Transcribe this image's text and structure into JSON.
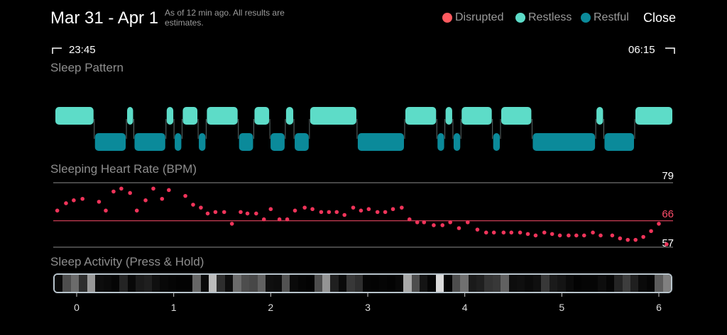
{
  "header": {
    "title": "Mar 31 - Apr 1",
    "note": "As of 12 min ago. All results are estimates.",
    "legend": [
      {
        "label": "Disrupted",
        "color": "#ff5a5f"
      },
      {
        "label": "Restless",
        "color": "#5ddcc8"
      },
      {
        "label": "Restful",
        "color": "#0b8a9a"
      }
    ],
    "close_label": "Close"
  },
  "times": {
    "start": "23:45",
    "end": "06:15"
  },
  "sections": {
    "pattern": "Sleep Pattern",
    "heart": "Sleeping Heart Rate (BPM)",
    "activity": "Sleep Activity (Press & Hold)"
  },
  "sleep_pattern": [
    [
      "restless",
      0.0,
      0.064
    ],
    [
      "restful",
      0.064,
      0.116
    ],
    [
      "restless",
      0.116,
      0.128
    ],
    [
      "restful",
      0.128,
      0.18
    ],
    [
      "restless",
      0.18,
      0.193
    ],
    [
      "restful",
      0.193,
      0.206
    ],
    [
      "restless",
      0.206,
      0.232
    ],
    [
      "restful",
      0.232,
      0.245
    ],
    [
      "restless",
      0.245,
      0.297
    ],
    [
      "restful",
      0.297,
      0.322
    ],
    [
      "restless",
      0.322,
      0.348
    ],
    [
      "restful",
      0.348,
      0.373
    ],
    [
      "restless",
      0.373,
      0.387
    ],
    [
      "restful",
      0.387,
      0.412
    ],
    [
      "restless",
      0.412,
      0.489
    ],
    [
      "restful",
      0.489,
      0.566
    ],
    [
      "restless",
      0.566,
      0.618
    ],
    [
      "restful",
      0.618,
      0.631
    ],
    [
      "restless",
      0.631,
      0.644
    ],
    [
      "restful",
      0.644,
      0.657
    ],
    [
      "restless",
      0.657,
      0.708
    ],
    [
      "restful",
      0.708,
      0.721
    ],
    [
      "restless",
      0.721,
      0.772
    ],
    [
      "restful",
      0.772,
      0.875
    ],
    [
      "restless",
      0.875,
      0.888
    ],
    [
      "restful",
      0.888,
      0.938
    ],
    [
      "restless",
      0.938,
      1.0
    ]
  ],
  "chart_data": {
    "type": "scatter",
    "title": "Sleeping Heart Rate (BPM)",
    "xlabel": "",
    "ylabel": "BPM",
    "reference_lines": [
      79,
      66,
      57
    ],
    "highlight_line": 66,
    "xlim": [
      -0.24,
      6.12
    ],
    "x_ticks": [
      "0",
      "1",
      "2",
      "3",
      "4",
      "5",
      "6"
    ],
    "x": [
      -0.2,
      -0.11,
      -0.03,
      0.06,
      0.23,
      0.3,
      0.38,
      0.46,
      0.55,
      0.62,
      0.71,
      0.79,
      0.88,
      0.95,
      1.12,
      1.2,
      1.28,
      1.35,
      1.43,
      1.52,
      1.6,
      1.69,
      1.76,
      1.85,
      1.93,
      2.0,
      2.09,
      2.17,
      2.25,
      2.35,
      2.43,
      2.52,
      2.6,
      2.68,
      2.76,
      2.85,
      2.93,
      3.01,
      3.1,
      3.18,
      3.26,
      3.35,
      3.43,
      3.51,
      3.58,
      3.68,
      3.77,
      3.85,
      3.94,
      4.03,
      4.13,
      4.22,
      4.3,
      4.4,
      4.48,
      4.57,
      4.65,
      4.73,
      4.82,
      4.9,
      4.98,
      5.07,
      5.15,
      5.23,
      5.32,
      5.4,
      5.52,
      5.6,
      5.68,
      5.76,
      5.84,
      5.92,
      6.0,
      6.08
    ],
    "y": [
      69.5,
      72,
      73,
      73.5,
      72.5,
      69.5,
      76,
      77,
      75.5,
      69.5,
      73,
      77,
      73.5,
      76.5,
      74.5,
      71.5,
      70.5,
      68.5,
      69,
      69,
      65,
      69,
      68.5,
      68.5,
      66.5,
      70,
      66.5,
      66.5,
      69.5,
      70.5,
      70,
      69,
      69,
      69,
      68,
      70.5,
      69.5,
      70,
      69,
      69,
      70,
      70.5,
      66.5,
      65.5,
      65.5,
      64.5,
      64.5,
      65.5,
      63.5,
      65.5,
      63,
      62,
      62,
      62,
      62,
      62,
      61.5,
      61,
      62,
      61.5,
      61,
      61,
      61,
      61,
      62,
      61,
      61,
      60,
      59.5,
      59.5,
      60.5,
      62.5,
      65,
      58
    ]
  },
  "activity": {
    "x_ticks": [
      "0",
      "1",
      "2",
      "3",
      "4",
      "5",
      "6"
    ],
    "levels": [
      0.04,
      0.3,
      0.42,
      0.18,
      0.6,
      0.05,
      0.04,
      0.02,
      0.14,
      0.03,
      0.1,
      0.12,
      0.06,
      0.03,
      0.02,
      0.01,
      0.01,
      0.4,
      0.04,
      0.74,
      0.18,
      0.05,
      0.42,
      0.3,
      0.28,
      0.38,
      0.06,
      0.05,
      0.32,
      0.04,
      0.02,
      0.01,
      0.3,
      0.58,
      0.12,
      0.04,
      0.22,
      0.18,
      0.02,
      0.01,
      0.02,
      0.01,
      0.03,
      0.66,
      0.3,
      0.08,
      0.02,
      0.86,
      0.02,
      0.3,
      0.44,
      0.1,
      0.12,
      0.2,
      0.22,
      0.38,
      0.05,
      0.06,
      0.04,
      0.06,
      0.22,
      0.1,
      0.08,
      0.04,
      0.01,
      0.02,
      0.02,
      0.05,
      0.02,
      0.14,
      0.24,
      0.12,
      0.04,
      0.02,
      0.36,
      0.5
    ]
  }
}
